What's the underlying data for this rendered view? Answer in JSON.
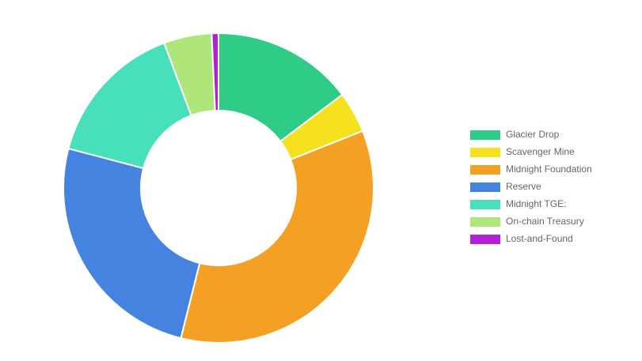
{
  "chart_data": {
    "type": "donut",
    "categories": [
      "Glacier Drop",
      "Scavenger Mine",
      "Midnight Foundation",
      "Reserve",
      "Midnight TGE:",
      "On-chain Treasury",
      "Lost-and-Found"
    ],
    "values": [
      14.7,
      4.3,
      34.9,
      25.2,
      15.2,
      5.0,
      0.7
    ],
    "colors": [
      "#2ecc87",
      "#f5e11d",
      "#f4a024",
      "#4484e0",
      "#48e0bb",
      "#aee67a",
      "#b41fd8"
    ],
    "legend": "right"
  }
}
